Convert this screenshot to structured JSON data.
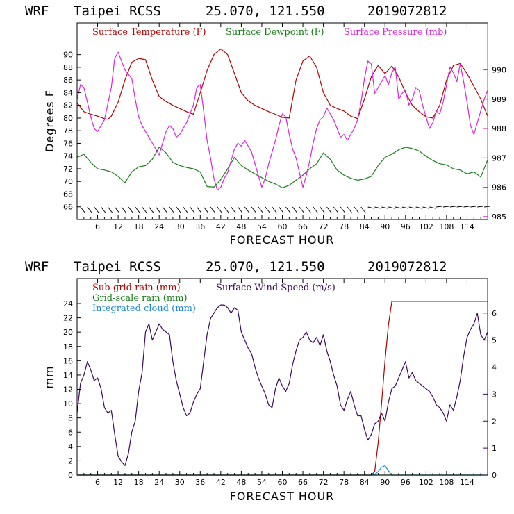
{
  "chart_data": [
    {
      "type": "line",
      "header": {
        "model": "WRF",
        "station": "Taipei RCSS",
        "coords": "25.070, 121.550",
        "init": "2019072812"
      },
      "xlabel": "FORECAST HOUR",
      "ylabel": "Degrees F",
      "xlim": [
        0,
        120
      ],
      "x_ticks": [
        6,
        12,
        18,
        24,
        30,
        36,
        42,
        48,
        54,
        60,
        66,
        72,
        78,
        84,
        90,
        96,
        102,
        108,
        114
      ],
      "x_tick_labels": [
        "6",
        "12",
        "18",
        "24",
        "30",
        "36",
        "42",
        "48",
        "54",
        "60",
        "66",
        "72",
        "78",
        "84",
        "90",
        "96",
        "102",
        "108",
        "114"
      ],
      "ylim": [
        64,
        95
      ],
      "y_ticks": [
        66,
        68,
        70,
        72,
        74,
        76,
        78,
        80,
        82,
        84,
        86,
        88,
        90
      ],
      "y_tick_labels": [
        "66",
        "68",
        "70",
        "72",
        "74",
        "76",
        "78",
        "80",
        "82",
        "84",
        "86",
        "88",
        "90"
      ],
      "y2lim": [
        984.9,
        991.6
      ],
      "y2_ticks": [
        985,
        986,
        987,
        988,
        989,
        990
      ],
      "y2_tick_labels": [
        "985",
        "986",
        "987",
        "988",
        "989",
        "990"
      ],
      "legend_position": "top",
      "series": [
        {
          "name": "Surface Temperature (F)",
          "axis": "left",
          "color": "#b00000",
          "x": [
            0,
            2,
            4,
            6,
            8,
            9,
            10,
            12,
            14,
            16,
            18,
            20,
            22,
            24,
            26,
            28,
            30,
            32,
            34,
            36,
            38,
            40,
            42,
            44,
            46,
            48,
            50,
            52,
            54,
            56,
            58,
            60,
            62,
            64,
            66,
            68,
            70,
            72,
            74,
            76,
            78,
            80,
            82,
            84,
            86,
            88,
            90,
            92,
            94,
            96,
            98,
            100,
            102,
            104,
            106,
            108,
            110,
            112,
            114,
            116,
            118,
            120
          ],
          "values": [
            82.4,
            81.0,
            80.6,
            80.3,
            79.9,
            79.8,
            80.3,
            82.5,
            86.0,
            88.8,
            89.4,
            89.2,
            86.0,
            83.4,
            82.6,
            82.0,
            81.5,
            81.0,
            80.6,
            84.0,
            87.5,
            90.0,
            90.9,
            90.0,
            87.0,
            84.0,
            82.7,
            82.0,
            81.5,
            81.0,
            80.6,
            80.1,
            80.0,
            86.0,
            89.0,
            89.8,
            88.0,
            84.0,
            82.0,
            81.5,
            81.1,
            80.3,
            79.9,
            83.0,
            86.5,
            88.3,
            87.0,
            88.2,
            86.5,
            84.0,
            82.0,
            81.0,
            80.2,
            80.0,
            82.0,
            86.0,
            88.3,
            88.6,
            87.0,
            85.0,
            83.0,
            80.3
          ]
        },
        {
          "name": "Surface Dewpoint (F)",
          "axis": "left",
          "color": "#1a7f1a",
          "x": [
            0,
            2,
            4,
            6,
            8,
            10,
            12,
            14,
            16,
            18,
            20,
            22,
            24,
            26,
            28,
            30,
            32,
            34,
            36,
            38,
            40,
            42,
            44,
            46,
            48,
            50,
            52,
            54,
            56,
            58,
            60,
            62,
            64,
            66,
            68,
            70,
            72,
            74,
            76,
            78,
            80,
            82,
            84,
            86,
            88,
            90,
            92,
            94,
            96,
            98,
            100,
            102,
            104,
            106,
            108,
            110,
            112,
            114,
            116,
            118,
            120
          ],
          "values": [
            73.8,
            74.3,
            73.0,
            72.0,
            71.8,
            71.5,
            70.8,
            69.8,
            71.5,
            72.3,
            72.5,
            73.5,
            75.4,
            74.5,
            73.0,
            72.5,
            72.2,
            72.0,
            71.5,
            69.2,
            69.1,
            70.3,
            72.0,
            73.8,
            72.5,
            71.8,
            71.2,
            70.6,
            70.0,
            69.6,
            69.0,
            69.4,
            70.2,
            71.0,
            72.0,
            72.8,
            74.5,
            73.5,
            71.8,
            71.0,
            70.5,
            70.2,
            70.4,
            70.8,
            72.5,
            73.8,
            74.3,
            75.0,
            75.4,
            75.2,
            74.8,
            74.0,
            73.3,
            72.8,
            72.6,
            72.0,
            71.8,
            71.2,
            71.5,
            70.7,
            73.4
          ]
        },
        {
          "name": "Surface Pressure (mb)",
          "axis": "right",
          "color": "#dd22dd",
          "x": [
            0,
            1,
            2,
            3,
            4,
            5,
            6,
            8,
            10,
            11,
            12,
            13,
            14,
            16,
            17,
            18,
            19,
            20,
            21,
            22,
            23,
            24,
            25,
            26,
            27,
            28,
            29,
            30,
            32,
            34,
            35,
            36,
            37,
            38,
            39,
            40,
            41,
            42,
            43,
            44,
            45,
            46,
            47,
            48,
            49,
            50,
            51,
            52,
            53,
            54,
            55,
            56,
            57,
            58,
            59,
            60,
            61,
            62,
            63,
            64,
            65,
            66,
            67,
            68,
            69,
            70,
            71,
            72,
            73,
            74,
            75,
            76,
            77,
            78,
            79,
            80,
            81,
            82,
            83,
            84,
            85,
            86,
            87,
            88,
            89,
            90,
            91,
            92,
            93,
            94,
            95,
            96,
            97,
            98,
            99,
            100,
            101,
            102,
            103,
            104,
            105,
            106,
            107,
            108,
            109,
            110,
            111,
            112,
            113,
            114,
            115,
            116,
            117,
            118,
            119,
            120
          ],
          "values": [
            989.0,
            989.5,
            989.4,
            988.9,
            988.4,
            988.0,
            987.9,
            988.3,
            989.4,
            990.4,
            990.6,
            990.3,
            990.0,
            989.7,
            989.0,
            988.4,
            988.1,
            987.9,
            987.7,
            987.5,
            987.3,
            987.1,
            987.5,
            987.9,
            988.1,
            988.0,
            987.7,
            987.8,
            988.2,
            988.8,
            989.4,
            989.5,
            988.6,
            987.6,
            987.0,
            986.3,
            985.9,
            986.0,
            986.3,
            986.5,
            986.9,
            987.3,
            987.5,
            987.4,
            987.6,
            987.4,
            987.2,
            986.8,
            986.4,
            986.0,
            986.3,
            986.8,
            987.2,
            987.6,
            988.1,
            988.5,
            988.4,
            987.8,
            987.3,
            987.0,
            986.5,
            986.0,
            986.4,
            986.9,
            987.5,
            988.0,
            988.3,
            988.4,
            988.7,
            988.5,
            988.3,
            988.0,
            987.7,
            987.8,
            987.6,
            987.8,
            988.0,
            988.3,
            988.9,
            989.7,
            990.3,
            990.2,
            989.2,
            989.4,
            989.6,
            989.8,
            989.5,
            989.9,
            990.1,
            989.0,
            989.2,
            989.3,
            988.8,
            989.0,
            989.4,
            989.3,
            988.8,
            988.4,
            988.0,
            988.2,
            988.6,
            988.5,
            988.9,
            989.5,
            990.1,
            989.9,
            989.6,
            990.2,
            989.6,
            988.9,
            988.1,
            987.8,
            988.2,
            988.6,
            989.0,
            989.3
          ]
        }
      ],
      "wind_barbs_note": "wind barbs along bottom of panel"
    },
    {
      "type": "line",
      "header": {
        "model": "WRF",
        "station": "Taipei RCSS",
        "coords": "25.070, 121.550",
        "init": "2019072812"
      },
      "xlabel": "FORECAST HOUR",
      "ylabel": "mm",
      "xlim": [
        0,
        120
      ],
      "x_ticks": [
        6,
        12,
        18,
        24,
        30,
        36,
        42,
        48,
        54,
        60,
        66,
        72,
        78,
        84,
        90,
        96,
        102,
        108,
        114
      ],
      "x_tick_labels": [
        "6",
        "12",
        "18",
        "24",
        "30",
        "36",
        "42",
        "48",
        "54",
        "60",
        "66",
        "72",
        "78",
        "84",
        "90",
        "96",
        "102",
        "108",
        "114"
      ],
      "ylim": [
        0,
        27.5
      ],
      "y_ticks": [
        0,
        2,
        4,
        6,
        8,
        10,
        12,
        14,
        16,
        18,
        20,
        22,
        24
      ],
      "y_tick_labels": [
        "0",
        "2",
        "4",
        "6",
        "8",
        "10",
        "12",
        "14",
        "16",
        "18",
        "20",
        "22",
        "24"
      ],
      "y2lim": [
        0,
        7.28
      ],
      "y2_ticks": [
        0,
        1,
        2,
        3,
        4,
        5,
        6
      ],
      "y2_tick_labels": [
        "0",
        "1",
        "2",
        "3",
        "4",
        "5",
        "6"
      ],
      "legend_position": "top",
      "series": [
        {
          "name": "Sub-grid rain (mm)",
          "axis": "left",
          "color": "#b00000",
          "x": [
            0,
            86,
            87,
            88,
            89,
            90,
            91,
            92,
            120
          ],
          "values": [
            0,
            0,
            0.5,
            4.5,
            10.0,
            16.0,
            21.0,
            24.3,
            24.3
          ]
        },
        {
          "name": "Grid-scale rain (mm)",
          "axis": "left",
          "color": "#1a7f1a",
          "x": [
            0,
            120
          ],
          "values": [
            0,
            0
          ]
        },
        {
          "name": "Integrated cloud (mm)",
          "axis": "left",
          "color": "#1e88d8",
          "x": [
            0,
            86,
            87,
            88,
            89,
            90,
            91,
            92,
            120
          ],
          "values": [
            0,
            0,
            0.1,
            0.5,
            1.1,
            1.3,
            0.6,
            0,
            0
          ]
        },
        {
          "name": "Surface Wind Speed (m/s)",
          "axis": "right",
          "color": "#3a0a5a",
          "x": [
            0,
            1,
            2,
            3,
            4,
            5,
            6,
            7,
            8,
            9,
            10,
            11,
            12,
            13,
            14,
            15,
            16,
            17,
            18,
            19,
            20,
            21,
            22,
            23,
            24,
            25,
            26,
            27,
            28,
            29,
            30,
            31,
            32,
            33,
            34,
            35,
            36,
            37,
            38,
            39,
            40,
            41,
            42,
            43,
            44,
            45,
            46,
            47,
            48,
            49,
            50,
            51,
            52,
            53,
            54,
            55,
            56,
            57,
            58,
            59,
            60,
            61,
            62,
            63,
            64,
            65,
            66,
            67,
            68,
            69,
            70,
            71,
            72,
            73,
            74,
            75,
            76,
            77,
            78,
            79,
            80,
            81,
            82,
            83,
            84,
            85,
            86,
            87,
            88,
            89,
            90,
            91,
            92,
            93,
            94,
            95,
            96,
            97,
            98,
            99,
            100,
            101,
            102,
            103,
            104,
            105,
            106,
            107,
            108,
            109,
            110,
            111,
            112,
            113,
            114,
            115,
            116,
            117,
            118,
            119,
            120
          ],
          "values": [
            2.3,
            3.4,
            3.7,
            4.2,
            3.9,
            3.5,
            3.6,
            3.2,
            2.5,
            2.3,
            2.4,
            1.5,
            0.7,
            0.5,
            0.35,
            0.8,
            1.6,
            2.0,
            3.1,
            3.8,
            5.3,
            5.6,
            5.0,
            5.3,
            5.6,
            5.4,
            5.3,
            5.2,
            4.2,
            3.5,
            3.0,
            2.5,
            2.2,
            2.3,
            2.7,
            3.0,
            3.2,
            4.2,
            5.2,
            5.8,
            6.0,
            6.2,
            6.3,
            6.3,
            6.2,
            6.0,
            6.2,
            6.1,
            5.3,
            5.0,
            4.7,
            4.5,
            4.0,
            3.6,
            3.3,
            3.0,
            2.6,
            2.5,
            3.2,
            3.6,
            3.3,
            3.1,
            3.4,
            4.1,
            4.6,
            5.0,
            5.1,
            5.3,
            5.0,
            4.9,
            5.1,
            4.8,
            5.2,
            4.6,
            4.2,
            3.7,
            3.3,
            2.6,
            2.4,
            2.8,
            3.1,
            2.6,
            2.2,
            2.2,
            1.7,
            1.3,
            1.5,
            1.9,
            2.0,
            2.3,
            2.0,
            2.7,
            3.2,
            3.3,
            3.6,
            3.9,
            4.2,
            3.6,
            3.8,
            3.5,
            3.4,
            3.3,
            3.2,
            3.1,
            2.9,
            2.6,
            2.5,
            2.3,
            2.0,
            2.6,
            2.4,
            2.9,
            3.5,
            4.4,
            5.1,
            5.4,
            5.6,
            6.0,
            5.2,
            5.0,
            5.3
          ]
        }
      ]
    }
  ]
}
